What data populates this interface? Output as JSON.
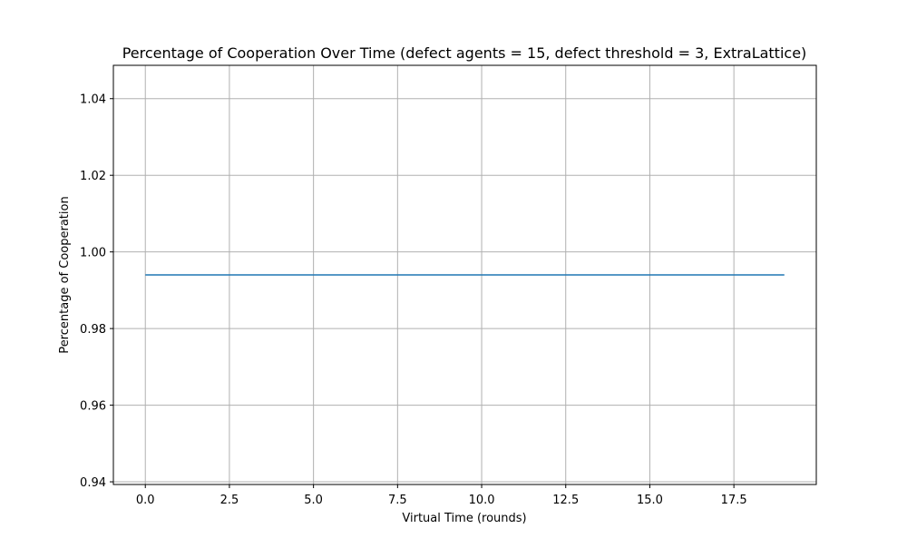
{
  "chart_data": {
    "type": "line",
    "title": "Percentage of Cooperation Over Time (defect agents = 15, defect threshold = 3, ExtraLattice)",
    "xlabel": "Virtual Time (rounds)",
    "ylabel": "Percentage of Cooperation",
    "xlim": [
      -0.95,
      19.95
    ],
    "ylim": [
      0.9393,
      1.0487
    ],
    "xticks": [
      0.0,
      2.5,
      5.0,
      7.5,
      10.0,
      12.5,
      15.0,
      17.5
    ],
    "xtick_labels": [
      "0.0",
      "2.5",
      "5.0",
      "7.5",
      "10.0",
      "12.5",
      "15.0",
      "17.5"
    ],
    "yticks": [
      0.94,
      0.96,
      0.98,
      1.0,
      1.02,
      1.04
    ],
    "ytick_labels": [
      "0.94",
      "0.96",
      "0.98",
      "1.00",
      "1.02",
      "1.04"
    ],
    "grid": true,
    "legend": false,
    "series": [
      {
        "color": "#1f77b4",
        "x": [
          0,
          1,
          2,
          3,
          4,
          5,
          6,
          7,
          8,
          9,
          10,
          11,
          12,
          13,
          14,
          15,
          16,
          17,
          18,
          19
        ],
        "values": [
          0.994,
          0.994,
          0.994,
          0.994,
          0.994,
          0.994,
          0.994,
          0.994,
          0.994,
          0.994,
          0.994,
          0.994,
          0.994,
          0.994,
          0.994,
          0.994,
          0.994,
          0.994,
          0.994,
          0.994
        ]
      }
    ]
  }
}
